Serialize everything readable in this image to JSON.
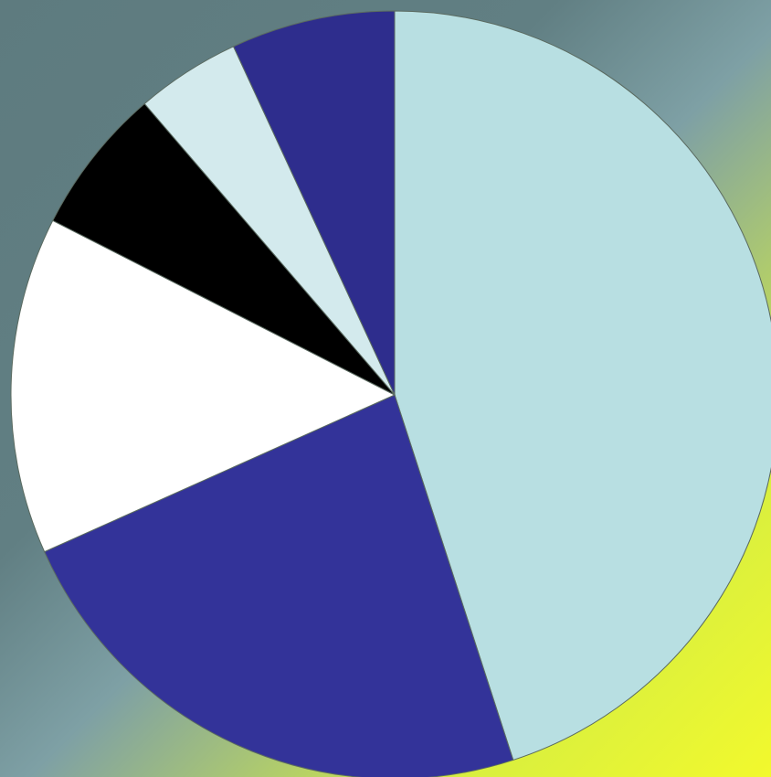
{
  "chart_data": {
    "type": "pie",
    "title": "",
    "start_angle_deg": 0,
    "direction": "clockwise",
    "slices": [
      {
        "value": 45.0,
        "color": "#b8dfe2"
      },
      {
        "value": 23.3,
        "color": "#333399"
      },
      {
        "value": 14.2,
        "color": "#ffffff"
      },
      {
        "value": 6.2,
        "color": "#000000"
      },
      {
        "value": 4.4,
        "color": "#d3eaed"
      },
      {
        "value": 6.9,
        "color": "#2e2d8d"
      }
    ],
    "legend": "none",
    "labels": "none"
  }
}
